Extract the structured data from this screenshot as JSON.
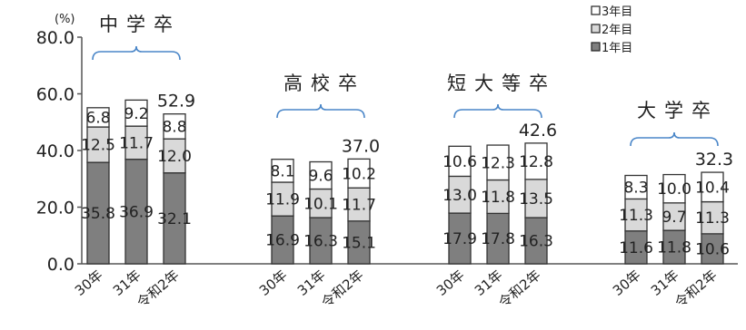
{
  "chart_data": {
    "type": "bar",
    "stacked": true,
    "unit_label": "(%)",
    "ylim": [
      0,
      80
    ],
    "yticks": [
      "0.0",
      "20.0",
      "40.0",
      "60.0",
      "80.0"
    ],
    "legend": {
      "placement": "top-right",
      "entries": [
        "3年目",
        "2年目",
        "1年目"
      ]
    },
    "series_colors": {
      "year1": "#7f7f7f",
      "year2": "#d9d9d9",
      "year3": "#ffffff"
    },
    "groups": [
      {
        "title": "中学卒",
        "categories": [
          "30年",
          "31年",
          "令和2年"
        ],
        "series": [
          {
            "name": "1年目",
            "values": [
              35.8,
              36.9,
              32.1
            ],
            "labels": [
              "35.8",
              "36.9",
              "32.1"
            ]
          },
          {
            "name": "2年目",
            "values": [
              12.5,
              11.7,
              12.0
            ],
            "labels": [
              "12.5",
              "11.7",
              "12.0"
            ]
          },
          {
            "name": "3年目",
            "values": [
              6.8,
              9.2,
              8.8
            ],
            "labels": [
              "6.8",
              "9.2",
              "8.8"
            ]
          }
        ],
        "total_label": "52.9"
      },
      {
        "title": "高校卒",
        "categories": [
          "30年",
          "31年",
          "令和2年"
        ],
        "series": [
          {
            "name": "1年目",
            "values": [
              16.9,
              16.3,
              15.1
            ],
            "labels": [
              "16.9",
              "16.3",
              "15.1"
            ]
          },
          {
            "name": "2年目",
            "values": [
              11.9,
              10.1,
              11.7
            ],
            "labels": [
              "11.9",
              "10.1",
              "11.7"
            ]
          },
          {
            "name": "3年目",
            "values": [
              8.1,
              9.6,
              10.2
            ],
            "labels": [
              "8.1",
              "9.6",
              "10.2"
            ]
          }
        ],
        "total_label": "37.0"
      },
      {
        "title": "短大等卒",
        "categories": [
          "30年",
          "31年",
          "令和2年"
        ],
        "series": [
          {
            "name": "1年目",
            "values": [
              17.9,
              17.8,
              16.3
            ],
            "labels": [
              "17.9",
              "17.8",
              "16.3"
            ]
          },
          {
            "name": "2年目",
            "values": [
              13.0,
              11.8,
              13.5
            ],
            "labels": [
              "13.0",
              "11.8",
              "13.5"
            ]
          },
          {
            "name": "3年目",
            "values": [
              10.6,
              12.3,
              12.8
            ],
            "labels": [
              "10.6",
              "12.3",
              "12.8"
            ]
          }
        ],
        "total_label": "42.6"
      },
      {
        "title": "大学卒",
        "categories": [
          "30年",
          "31年",
          "令和2年"
        ],
        "series": [
          {
            "name": "1年目",
            "values": [
              11.6,
              11.8,
              10.6
            ],
            "labels": [
              "11.6",
              "11.8",
              "10.6"
            ]
          },
          {
            "name": "2年目",
            "values": [
              11.3,
              9.7,
              11.3
            ],
            "labels": [
              "11.3",
              "9.7",
              "11.3"
            ]
          },
          {
            "name": "3年目",
            "values": [
              8.3,
              10.0,
              10.4
            ],
            "labels": [
              "8.3",
              "10.0",
              "10.4"
            ]
          }
        ],
        "total_label": "32.3"
      }
    ]
  }
}
